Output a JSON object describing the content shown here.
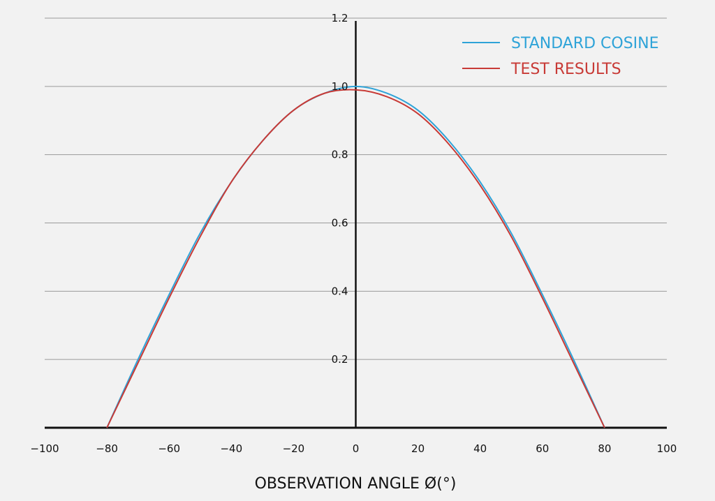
{
  "chart_data": {
    "type": "line",
    "title": "",
    "xlabel": "OBSERVATION ANGLE Ø(°)",
    "ylabel": "",
    "xlim": [
      -100,
      100
    ],
    "ylim": [
      0,
      1.2
    ],
    "x_ticks": [
      "−100",
      "−80",
      "−60",
      "−40",
      "−20",
      "0",
      "20",
      "40",
      "60",
      "80",
      "100"
    ],
    "y_ticks": [
      "0.2",
      "0.4",
      "0.6",
      "0.8",
      "1.0",
      "1.2"
    ],
    "grid": "horizontal",
    "legend_position": "top-right",
    "series": [
      {
        "name": "STANDARD COSINE",
        "color": "#2ea3d8",
        "x": [
          -80,
          -70,
          -60,
          -50,
          -40,
          -30,
          -20,
          -10,
          0,
          10,
          20,
          30,
          40,
          50,
          60,
          70,
          80
        ],
        "y": [
          0.0,
          0.2,
          0.39,
          0.57,
          0.72,
          0.84,
          0.93,
          0.98,
          1.0,
          0.98,
          0.93,
          0.84,
          0.72,
          0.57,
          0.39,
          0.2,
          0.0
        ]
      },
      {
        "name": "TEST RESULTS",
        "color": "#c83a36",
        "x": [
          -80,
          -70,
          -60,
          -50,
          -40,
          -30,
          -20,
          -10,
          0,
          10,
          20,
          30,
          40,
          50,
          60,
          70,
          80
        ],
        "y": [
          0.0,
          0.19,
          0.38,
          0.56,
          0.72,
          0.84,
          0.93,
          0.98,
          0.99,
          0.97,
          0.92,
          0.83,
          0.71,
          0.56,
          0.38,
          0.19,
          0.0
        ]
      }
    ]
  }
}
